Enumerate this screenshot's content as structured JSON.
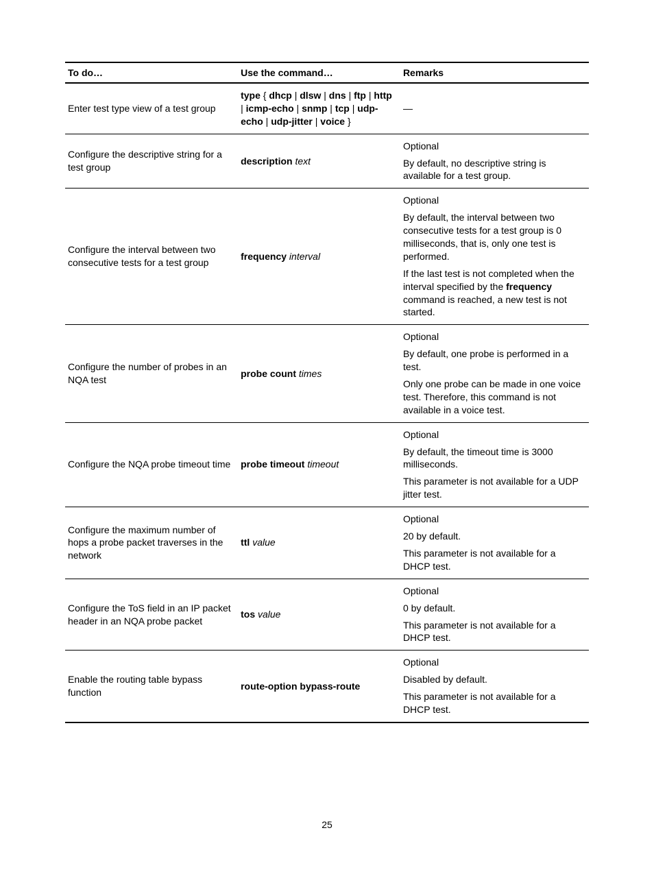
{
  "page_number": "25",
  "table": {
    "headers": {
      "todo": "To do…",
      "command": "Use the command…",
      "remarks": "Remarks"
    },
    "column_widths_pct": [
      33,
      31,
      36
    ],
    "font_size_pt": 14,
    "border_color": "#000000",
    "background_color": "#ffffff",
    "rows": [
      {
        "todo": "Enter test type view of a test group",
        "command_parts": [
          {
            "t": "type",
            "b": true
          },
          {
            "t": " { "
          },
          {
            "t": "dhcp",
            "b": true
          },
          {
            "t": " | "
          },
          {
            "t": "dlsw",
            "b": true
          },
          {
            "t": " | "
          },
          {
            "t": "dns",
            "b": true
          },
          {
            "t": " | "
          },
          {
            "t": "ftp",
            "b": true
          },
          {
            "t": " | "
          },
          {
            "t": "http",
            "b": true
          },
          {
            "t": " | "
          },
          {
            "t": "icmp-echo",
            "b": true
          },
          {
            "t": " | "
          },
          {
            "t": "snmp",
            "b": true
          },
          {
            "t": " | "
          },
          {
            "t": "tcp",
            "b": true
          },
          {
            "t": " | "
          },
          {
            "t": "udp-echo",
            "b": true
          },
          {
            "t": " | "
          },
          {
            "t": "udp-jitter",
            "b": true
          },
          {
            "t": " | "
          },
          {
            "t": "voice",
            "b": true
          },
          {
            "t": " }"
          }
        ],
        "remarks": [
          [
            {
              "t": "—"
            }
          ]
        ]
      },
      {
        "todo": "Configure the descriptive string for a test group",
        "command_parts": [
          {
            "t": "description",
            "b": true
          },
          {
            "t": " "
          },
          {
            "t": "text",
            "i": true
          }
        ],
        "remarks": [
          [
            {
              "t": "Optional"
            }
          ],
          [
            {
              "t": "By default, no descriptive string is available for a test group."
            }
          ]
        ]
      },
      {
        "todo": "Configure the interval between two consecutive tests for a test group",
        "command_parts": [
          {
            "t": "frequency",
            "b": true
          },
          {
            "t": " "
          },
          {
            "t": "interval",
            "i": true
          }
        ],
        "remarks": [
          [
            {
              "t": "Optional"
            }
          ],
          [
            {
              "t": "By default, the interval between two consecutive tests for a test group is 0 milliseconds, that is, only one test is performed."
            }
          ],
          [
            {
              "t": "If the last test is not completed when the interval specified by the "
            },
            {
              "t": "frequency",
              "b": true
            },
            {
              "t": " command is reached, a new test is not started."
            }
          ]
        ]
      },
      {
        "todo": "Configure the number of probes in an NQA test",
        "command_parts": [
          {
            "t": "probe count",
            "b": true
          },
          {
            "t": " "
          },
          {
            "t": "times",
            "i": true
          }
        ],
        "remarks": [
          [
            {
              "t": "Optional"
            }
          ],
          [
            {
              "t": "By default, one probe is performed in a test."
            }
          ],
          [
            {
              "t": "Only one probe can be made in one voice test. Therefore, this command is not available in a voice test."
            }
          ]
        ]
      },
      {
        "todo": "Configure the NQA probe timeout time",
        "command_parts": [
          {
            "t": "probe timeout",
            "b": true
          },
          {
            "t": " "
          },
          {
            "t": "timeout",
            "i": true
          }
        ],
        "remarks": [
          [
            {
              "t": "Optional"
            }
          ],
          [
            {
              "t": "By default, the timeout time is 3000 milliseconds."
            }
          ],
          [
            {
              "t": "This parameter is not available for a UDP jitter test."
            }
          ]
        ]
      },
      {
        "todo": "Configure the maximum number of hops a probe packet traverses in the network",
        "command_parts": [
          {
            "t": "ttl",
            "b": true
          },
          {
            "t": " "
          },
          {
            "t": "value",
            "i": true
          }
        ],
        "remarks": [
          [
            {
              "t": "Optional"
            }
          ],
          [
            {
              "t": "20 by default."
            }
          ],
          [
            {
              "t": "This parameter is not available for a DHCP test."
            }
          ]
        ]
      },
      {
        "todo": "Configure the ToS field in an IP packet header in an NQA probe packet",
        "command_parts": [
          {
            "t": "tos",
            "b": true
          },
          {
            "t": " "
          },
          {
            "t": "value",
            "i": true
          }
        ],
        "remarks": [
          [
            {
              "t": "Optional"
            }
          ],
          [
            {
              "t": "0 by default."
            }
          ],
          [
            {
              "t": "This parameter is not available for a DHCP test."
            }
          ]
        ]
      },
      {
        "todo": "Enable the routing table bypass function",
        "command_parts": [
          {
            "t": "route-option bypass-route",
            "b": true
          }
        ],
        "remarks": [
          [
            {
              "t": "Optional"
            }
          ],
          [
            {
              "t": "Disabled by default."
            }
          ],
          [
            {
              "t": "This parameter is not available for a DHCP test."
            }
          ]
        ]
      }
    ]
  }
}
